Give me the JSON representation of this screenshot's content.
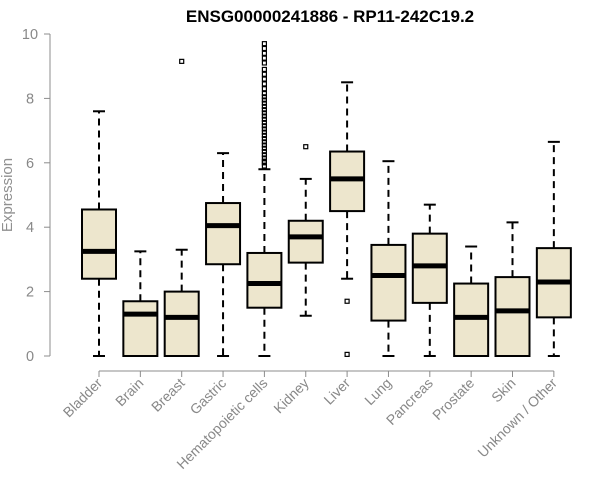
{
  "chart_data": {
    "type": "boxplot",
    "title": "ENSG00000241886 - RP11-242C19.2",
    "ylabel": "Expression",
    "xlabel": "",
    "ylim": [
      0,
      10
    ],
    "yticks": [
      0,
      2,
      4,
      6,
      8,
      10
    ],
    "box_fill": "#ede6cd",
    "box_stroke": "#000000",
    "categories": [
      "Bladder",
      "Brain",
      "Breast",
      "Gastric",
      "Hematopoietic cells",
      "Kidney",
      "Liver",
      "Lung",
      "Pancreas",
      "Prostate",
      "Skin",
      "Unknown / Other"
    ],
    "boxes": [
      {
        "min": 0.0,
        "q1": 2.4,
        "median": 3.25,
        "q3": 4.55,
        "max": 7.6,
        "outliers": []
      },
      {
        "min": 0.0,
        "q1": 0.0,
        "median": 1.3,
        "q3": 1.7,
        "max": 3.25,
        "outliers": []
      },
      {
        "min": 0.0,
        "q1": 0.0,
        "median": 1.2,
        "q3": 2.0,
        "max": 3.3,
        "outliers": [
          9.15
        ]
      },
      {
        "min": 0.0,
        "q1": 2.85,
        "median": 4.05,
        "q3": 4.75,
        "max": 6.3,
        "outliers": []
      },
      {
        "min": 0.0,
        "q1": 1.5,
        "median": 2.25,
        "q3": 3.2,
        "max": 5.8,
        "outliers": [
          5.9,
          6.0,
          6.05,
          6.15,
          6.25,
          6.35,
          6.45,
          6.55,
          6.65,
          6.75,
          6.85,
          6.95,
          7.05,
          7.15,
          7.25,
          7.35,
          7.45,
          7.55,
          7.65,
          7.75,
          7.85,
          7.95,
          8.05,
          8.15,
          8.3,
          8.45,
          8.6,
          8.75,
          8.9,
          9.1,
          9.25,
          9.4,
          9.55,
          9.7
        ]
      },
      {
        "min": 1.25,
        "q1": 2.9,
        "median": 3.7,
        "q3": 4.2,
        "max": 5.5,
        "outliers": [
          6.5
        ]
      },
      {
        "min": 2.4,
        "q1": 4.5,
        "median": 5.5,
        "q3": 6.35,
        "max": 8.5,
        "outliers": [
          1.7,
          0.05
        ]
      },
      {
        "min": 0.0,
        "q1": 1.1,
        "median": 2.5,
        "q3": 3.45,
        "max": 6.05,
        "outliers": []
      },
      {
        "min": 0.0,
        "q1": 1.65,
        "median": 2.8,
        "q3": 3.8,
        "max": 4.7,
        "outliers": []
      },
      {
        "min": 0.0,
        "q1": 0.0,
        "median": 1.2,
        "q3": 2.25,
        "max": 3.4,
        "outliers": []
      },
      {
        "min": 0.0,
        "q1": 0.0,
        "median": 1.4,
        "q3": 2.45,
        "max": 4.15,
        "outliers": []
      },
      {
        "min": 0.0,
        "q1": 1.2,
        "median": 2.3,
        "q3": 3.35,
        "max": 6.65,
        "outliers": []
      }
    ]
  }
}
